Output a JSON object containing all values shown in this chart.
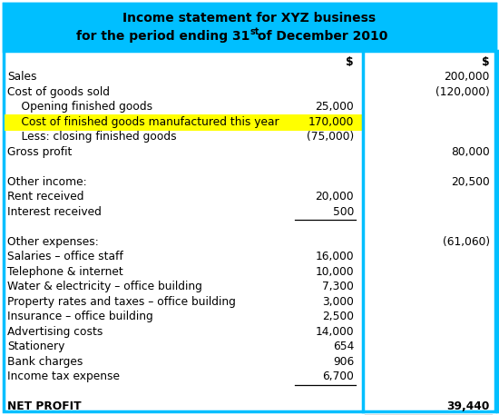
{
  "title_line1": "Income statement for XYZ business",
  "title_line2_pre": "for the period ending 31",
  "title_line2_sup": "st",
  "title_line2_post": " of December 2010",
  "title_bg": "#00BFFF",
  "border_color": "#00BFFF",
  "highlight_color": "#FFFF00",
  "bg_color": "#FFFFFF",
  "text_color": "#000000",
  "title_fontsize": 10,
  "body_fontsize": 8.8,
  "fig_width": 5.5,
  "fig_height": 4.57,
  "dpi": 100,
  "rows": [
    {
      "label": "$",
      "indent": false,
      "col1": "$",
      "col2": "$",
      "bold": true,
      "highlight": false,
      "ul1": false,
      "ul2": false,
      "header": true
    },
    {
      "label": "Sales",
      "indent": false,
      "col1": "",
      "col2": "200,000",
      "bold": false,
      "highlight": false,
      "ul1": false,
      "ul2": false,
      "header": false
    },
    {
      "label": "Cost of goods sold",
      "indent": false,
      "col1": "",
      "col2": "(120,000)",
      "bold": false,
      "highlight": false,
      "ul1": false,
      "ul2": false,
      "header": false
    },
    {
      "label": "    Opening finished goods",
      "indent": true,
      "col1": "25,000",
      "col2": "",
      "bold": false,
      "highlight": false,
      "ul1": false,
      "ul2": false,
      "header": false
    },
    {
      "label": "    Cost of finished goods manufactured this year",
      "indent": true,
      "col1": "170,000",
      "col2": "",
      "bold": false,
      "highlight": true,
      "ul1": false,
      "ul2": false,
      "header": false
    },
    {
      "label": "    Less: closing finished goods",
      "indent": true,
      "col1": "(75,000)",
      "col2": "",
      "bold": false,
      "highlight": false,
      "ul1": false,
      "ul2": false,
      "header": false
    },
    {
      "label": "Gross profit",
      "indent": false,
      "col1": "",
      "col2": "80,000",
      "bold": false,
      "highlight": false,
      "ul1": false,
      "ul2": false,
      "header": false
    },
    {
      "label": "",
      "indent": false,
      "col1": "",
      "col2": "",
      "bold": false,
      "highlight": false,
      "ul1": false,
      "ul2": false,
      "header": false
    },
    {
      "label": "Other income:",
      "indent": false,
      "col1": "",
      "col2": "20,500",
      "bold": false,
      "highlight": false,
      "ul1": false,
      "ul2": false,
      "header": false
    },
    {
      "label": "Rent received",
      "indent": false,
      "col1": "20,000",
      "col2": "",
      "bold": false,
      "highlight": false,
      "ul1": false,
      "ul2": false,
      "header": false
    },
    {
      "label": "Interest received",
      "indent": false,
      "col1": "500",
      "col2": "",
      "bold": false,
      "highlight": false,
      "ul1": true,
      "ul2": false,
      "header": false
    },
    {
      "label": "",
      "indent": false,
      "col1": "",
      "col2": "",
      "bold": false,
      "highlight": false,
      "ul1": false,
      "ul2": false,
      "header": false
    },
    {
      "label": "Other expenses:",
      "indent": false,
      "col1": "",
      "col2": "(61,060)",
      "bold": false,
      "highlight": false,
      "ul1": false,
      "ul2": false,
      "header": false
    },
    {
      "label": "Salaries – office staff",
      "indent": false,
      "col1": "16,000",
      "col2": "",
      "bold": false,
      "highlight": false,
      "ul1": false,
      "ul2": false,
      "header": false
    },
    {
      "label": "Telephone & internet",
      "indent": false,
      "col1": "10,000",
      "col2": "",
      "bold": false,
      "highlight": false,
      "ul1": false,
      "ul2": false,
      "header": false
    },
    {
      "label": "Water & electricity – office building",
      "indent": false,
      "col1": "7,300",
      "col2": "",
      "bold": false,
      "highlight": false,
      "ul1": false,
      "ul2": false,
      "header": false
    },
    {
      "label": "Property rates and taxes – office building",
      "indent": false,
      "col1": "3,000",
      "col2": "",
      "bold": false,
      "highlight": false,
      "ul1": false,
      "ul2": false,
      "header": false
    },
    {
      "label": "Insurance – office building",
      "indent": false,
      "col1": "2,500",
      "col2": "",
      "bold": false,
      "highlight": false,
      "ul1": false,
      "ul2": false,
      "header": false
    },
    {
      "label": "Advertising costs",
      "indent": false,
      "col1": "14,000",
      "col2": "",
      "bold": false,
      "highlight": false,
      "ul1": false,
      "ul2": false,
      "header": false
    },
    {
      "label": "Stationery",
      "indent": false,
      "col1": "654",
      "col2": "",
      "bold": false,
      "highlight": false,
      "ul1": false,
      "ul2": false,
      "header": false
    },
    {
      "label": "Bank charges",
      "indent": false,
      "col1": "906",
      "col2": "",
      "bold": false,
      "highlight": false,
      "ul1": false,
      "ul2": false,
      "header": false
    },
    {
      "label": "Income tax expense",
      "indent": false,
      "col1": "6,700",
      "col2": "",
      "bold": false,
      "highlight": false,
      "ul1": true,
      "ul2": false,
      "header": false
    },
    {
      "label": "",
      "indent": false,
      "col1": "",
      "col2": "",
      "bold": false,
      "highlight": false,
      "ul1": false,
      "ul2": false,
      "header": false
    },
    {
      "label": "NET PROFIT",
      "indent": false,
      "col1": "",
      "col2": "39,440",
      "bold": true,
      "highlight": false,
      "ul1": false,
      "ul2": true,
      "header": false
    }
  ]
}
